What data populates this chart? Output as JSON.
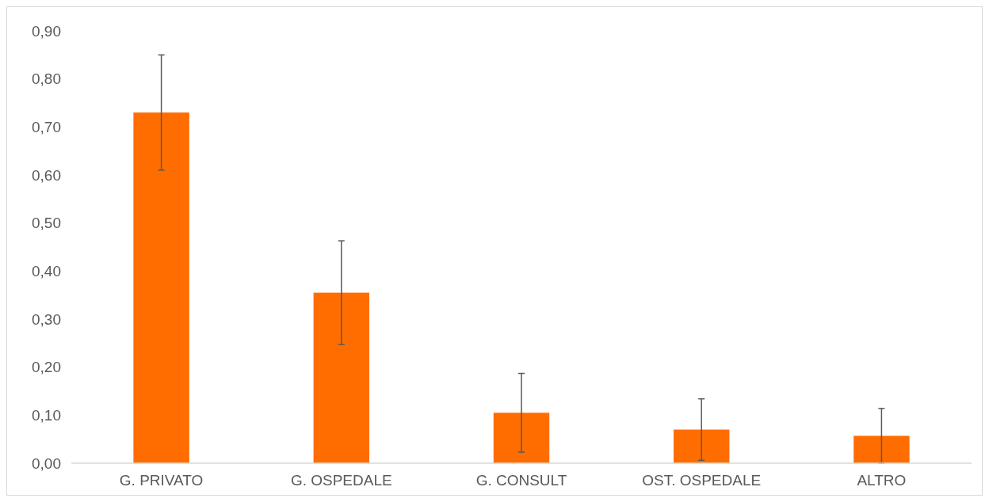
{
  "chart_data": {
    "type": "bar",
    "categories": [
      "G. PRIVATO",
      "G. OSPEDALE",
      "G. CONSULT",
      "OST. OSPEDALE",
      "ALTRO"
    ],
    "values": [
      0.73,
      0.355,
      0.105,
      0.07,
      0.057
    ],
    "errors": [
      0.12,
      0.108,
      0.082,
      0.064,
      0.057
    ],
    "color": "#ff6d00",
    "ylim": [
      0,
      0.9
    ],
    "yticks": [
      {
        "value": 0,
        "label": "0,00"
      },
      {
        "value": 0.1,
        "label": "0,10"
      },
      {
        "value": 0.2,
        "label": "0,20"
      },
      {
        "value": 0.3,
        "label": "0,30"
      },
      {
        "value": 0.4,
        "label": "0,40"
      },
      {
        "value": 0.5,
        "label": "0,50"
      },
      {
        "value": 0.6,
        "label": "0,60"
      },
      {
        "value": 0.7,
        "label": "0,70"
      },
      {
        "value": 0.8,
        "label": "0,80"
      },
      {
        "value": 0.9,
        "label": "0,90"
      }
    ],
    "grid": false
  }
}
